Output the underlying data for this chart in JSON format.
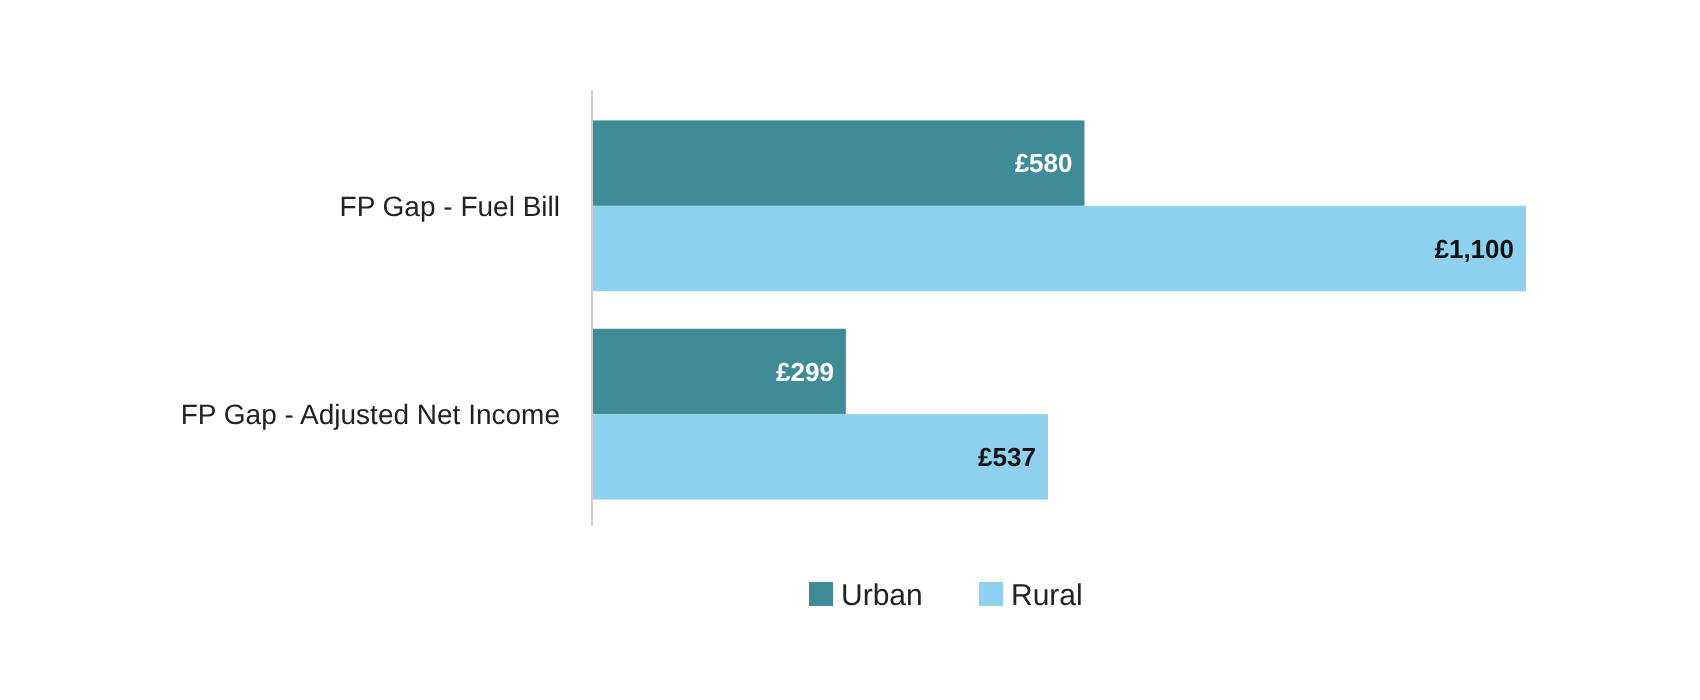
{
  "chart_data": {
    "type": "bar",
    "orientation": "horizontal",
    "categories": [
      "FP Gap - Fuel Bill",
      "FP Gap - Adjusted Net Income"
    ],
    "series": [
      {
        "name": "Urban",
        "color": "#3f8c98",
        "values": [
          580,
          299
        ],
        "value_labels": [
          "£580",
          "£299"
        ]
      },
      {
        "name": "Rural",
        "color": "#8ed1ef",
        "values": [
          1100,
          537
        ],
        "value_labels": [
          "£1,100",
          "£537"
        ]
      }
    ],
    "legend": "bottom"
  }
}
